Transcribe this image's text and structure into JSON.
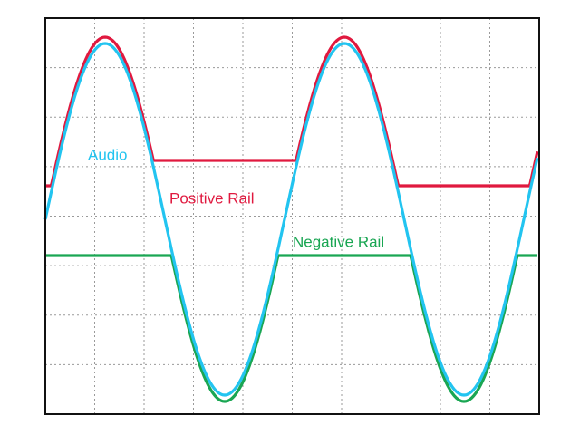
{
  "labels": {
    "audio": "Audio",
    "positive_rail": "Positive Rail",
    "negative_rail": "Negative Rail"
  }
}
